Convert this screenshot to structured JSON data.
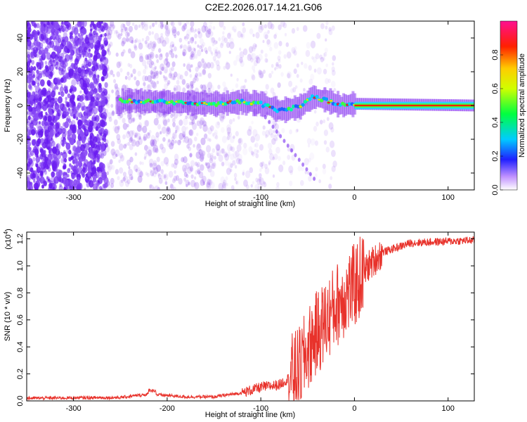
{
  "title": "C2E2.2026.017.14.21.G06",
  "chart_data": [
    {
      "type": "heatmap",
      "name": "spectrogram",
      "xlabel": "Height of straight line (km)",
      "ylabel": "Frequency (Hz)",
      "xlim": [
        -350,
        128
      ],
      "ylim": [
        -50,
        50
      ],
      "xticks": [
        -300,
        -200,
        -100,
        0,
        100
      ],
      "yticks": [
        -40,
        -20,
        0,
        20,
        40
      ],
      "colorbar": {
        "label": "Normalized spectral amplitude",
        "range": [
          0,
          1
        ],
        "ticks": [
          "0.0",
          "0.2",
          "0.4",
          "0.6",
          "0.8"
        ],
        "tick_values": [
          0,
          0.2,
          0.4,
          0.6,
          0.8
        ]
      },
      "main_line": [
        {
          "x": -250,
          "y": 3
        },
        {
          "x": -200,
          "y": 2
        },
        {
          "x": -150,
          "y": 1
        },
        {
          "x": -120,
          "y": 2
        },
        {
          "x": -100,
          "y": 1
        },
        {
          "x": -80,
          "y": -3
        },
        {
          "x": -60,
          "y": -1
        },
        {
          "x": -45,
          "y": 5
        },
        {
          "x": -30,
          "y": 3
        },
        {
          "x": -15,
          "y": 0
        },
        {
          "x": 0,
          "y": 1
        },
        {
          "x": 128,
          "y": 0
        }
      ]
    },
    {
      "type": "line",
      "name": "snr",
      "xlabel": "Height of straight line (km)",
      "ylabel": "SNR (10 * v/v)",
      "multiplier_label": "(x10",
      "multiplier_exp": "4",
      "multiplier_close": ")",
      "xlim": [
        -350,
        128
      ],
      "ylim": [
        0,
        1.25
      ],
      "xticks": [
        -300,
        -200,
        -100,
        0,
        100
      ],
      "yticks": [
        0.0,
        0.2,
        0.4,
        0.6,
        0.8,
        1.0,
        1.2
      ],
      "ytick_labels": [
        "0.0",
        "0.2",
        "0.4",
        "0.6",
        "0.8",
        "1.0",
        "1.2"
      ],
      "trend": [
        {
          "x": -350,
          "y": 0.02
        },
        {
          "x": -250,
          "y": 0.025
        },
        {
          "x": -220,
          "y": 0.05
        },
        {
          "x": -180,
          "y": 0.03
        },
        {
          "x": -150,
          "y": 0.03
        },
        {
          "x": -120,
          "y": 0.06
        },
        {
          "x": -100,
          "y": 0.1
        },
        {
          "x": -80,
          "y": 0.12
        },
        {
          "x": -60,
          "y": 0.22
        },
        {
          "x": -45,
          "y": 0.45
        },
        {
          "x": -30,
          "y": 0.6
        },
        {
          "x": -15,
          "y": 0.75
        },
        {
          "x": 0,
          "y": 0.85
        },
        {
          "x": 15,
          "y": 1.0
        },
        {
          "x": 30,
          "y": 1.1
        },
        {
          "x": 60,
          "y": 1.17
        },
        {
          "x": 128,
          "y": 1.19
        }
      ],
      "color": "#e8322b"
    }
  ]
}
